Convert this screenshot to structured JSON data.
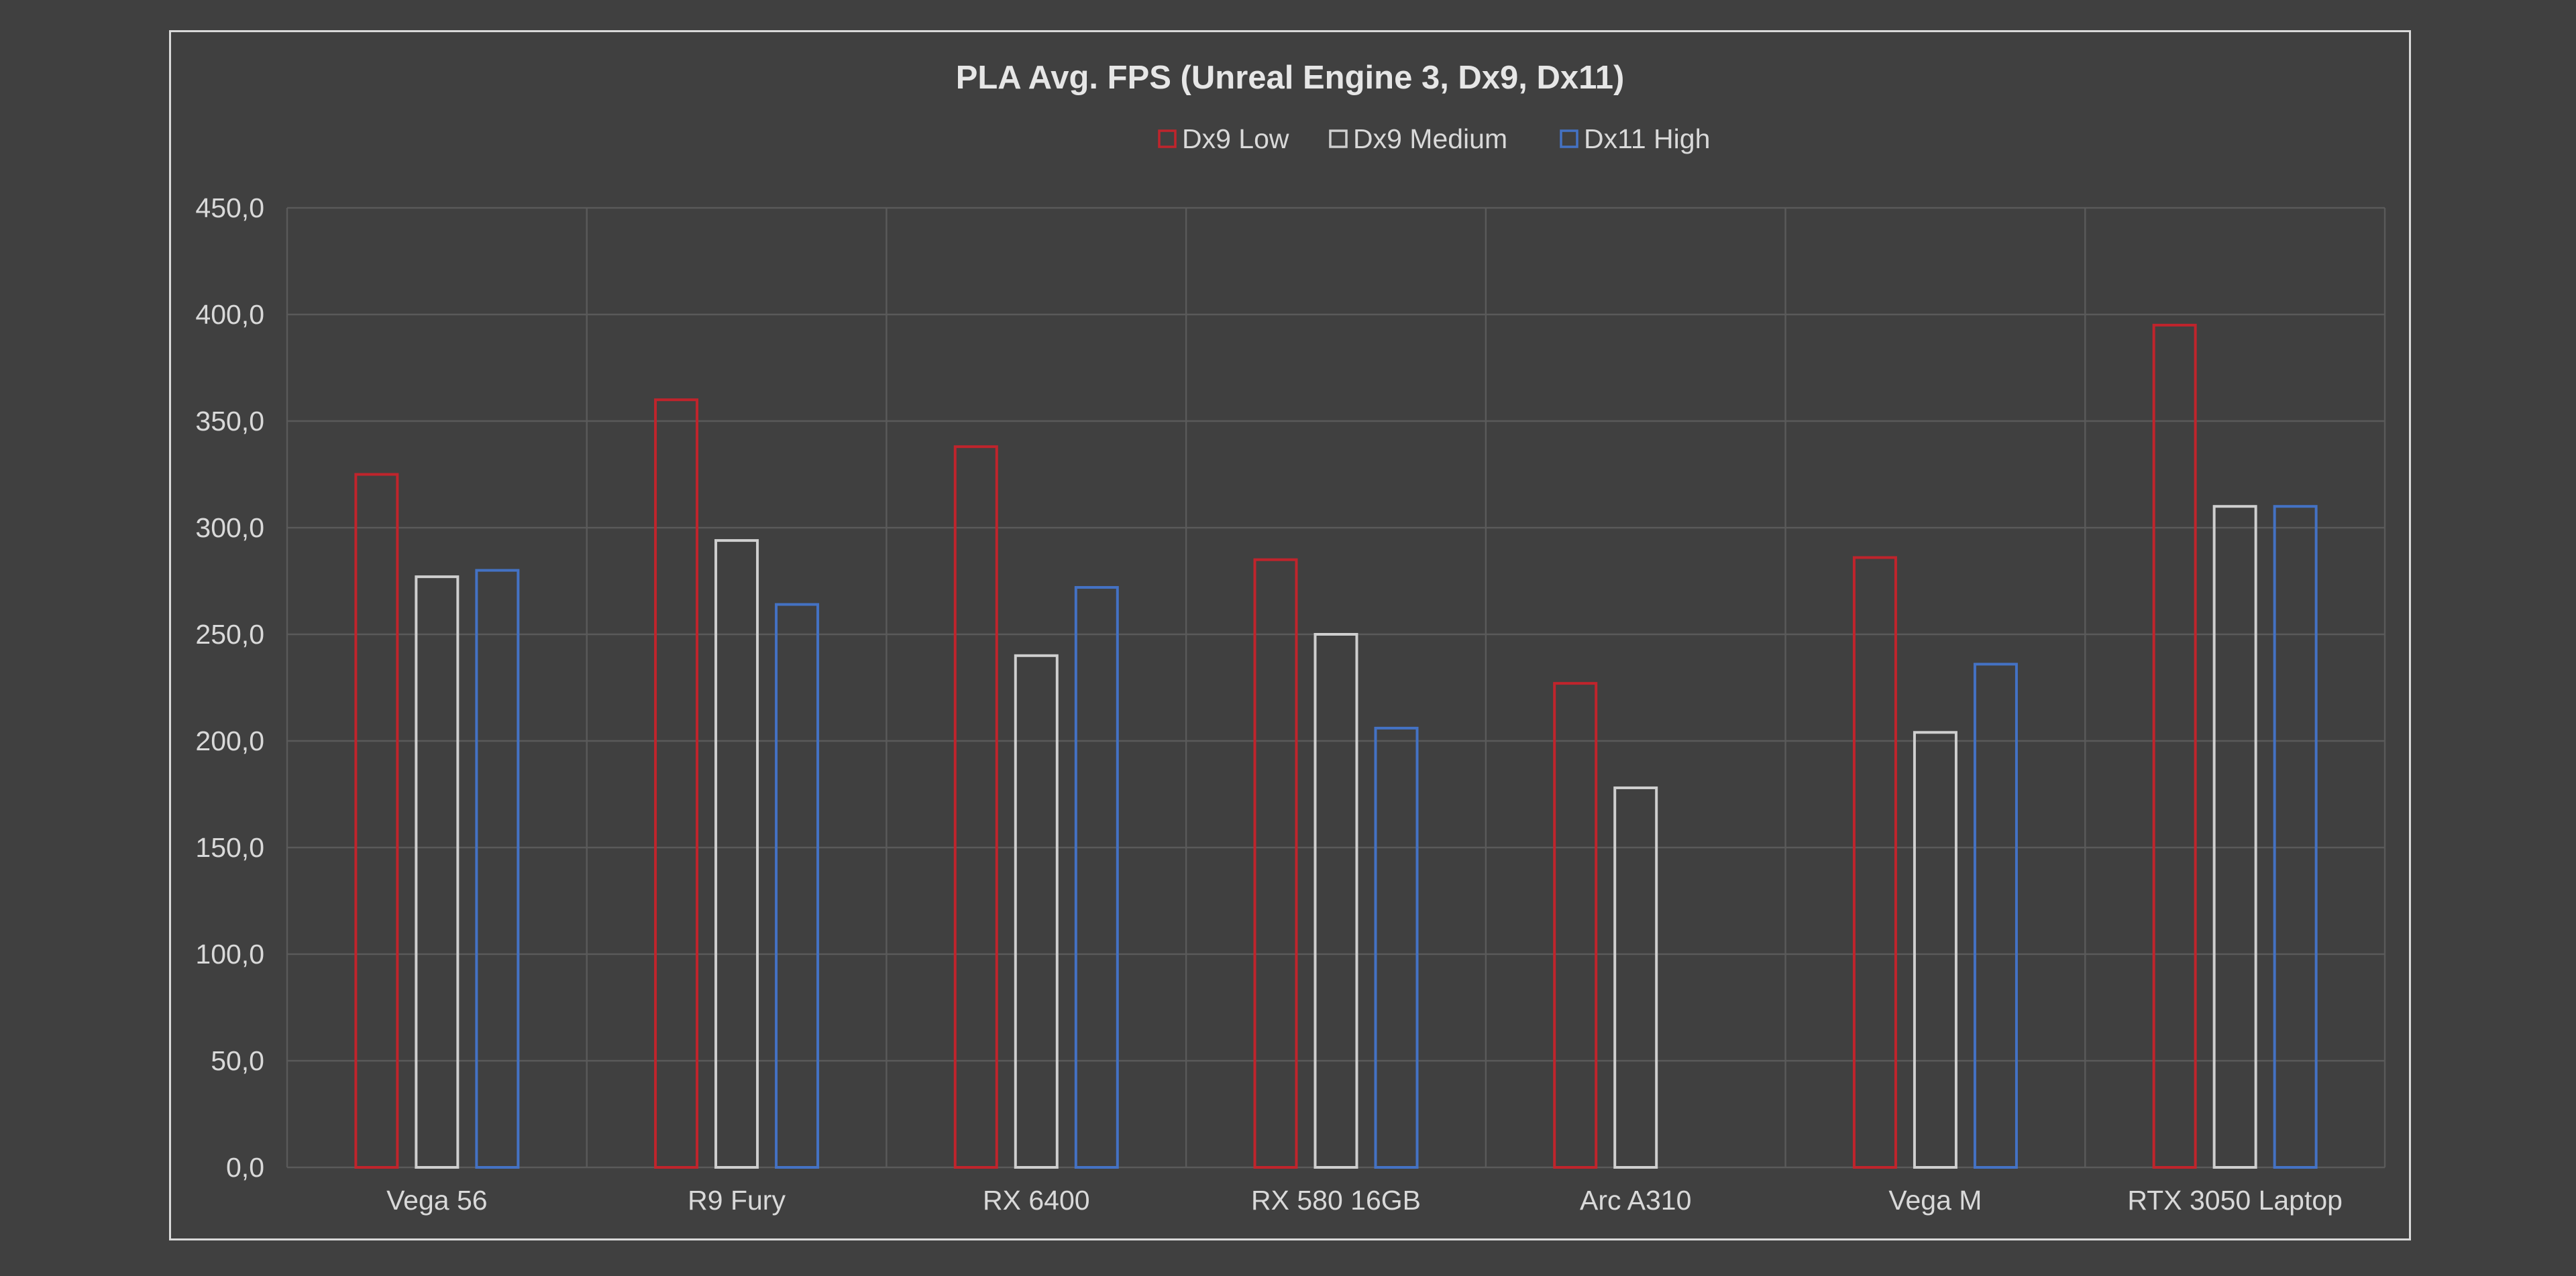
{
  "chart_data": {
    "type": "bar",
    "title": "PLA Avg. FPS (Unreal Engine 3, Dx9, Dx11)",
    "categories": [
      "Vega 56",
      "R9 Fury",
      "RX 6400",
      "RX 580 16GB",
      "Arc A310",
      "Vega M",
      "RTX 3050 Laptop"
    ],
    "series": [
      {
        "name": "Dx9 Low",
        "color": "#c0242c",
        "values": [
          325,
          360,
          338,
          285,
          227,
          286,
          395
        ]
      },
      {
        "name": "Dx9 Medium",
        "color": "#cfcfcf",
        "values": [
          277,
          294,
          240,
          250,
          178,
          204,
          310
        ]
      },
      {
        "name": "Dx11 High",
        "color": "#4472c4",
        "values": [
          280,
          264,
          272,
          206,
          null,
          236,
          310
        ]
      }
    ],
    "ylim": [
      0,
      450
    ],
    "ytick_labels": [
      "0,0",
      "50,0",
      "100,0",
      "150,0",
      "200,0",
      "250,0",
      "300,0",
      "350,0",
      "400,0",
      "450,0"
    ],
    "legend_position": "top",
    "grid": true
  }
}
